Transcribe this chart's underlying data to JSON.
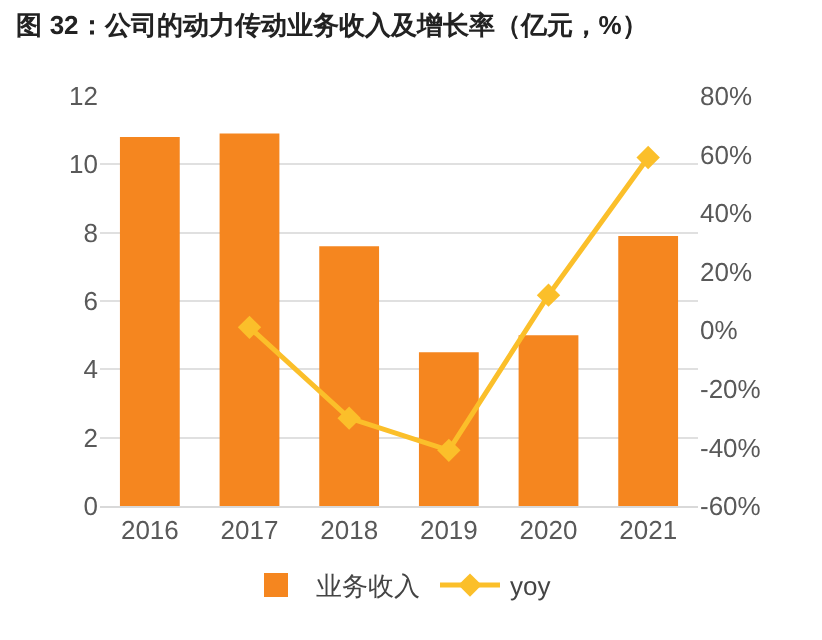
{
  "chart_data": {
    "type": "bar",
    "title": "图 32：公司的动力传动业务收入及增长率（亿元，%）",
    "categories": [
      "2016",
      "2017",
      "2018",
      "2019",
      "2020",
      "2021"
    ],
    "series": [
      {
        "name": "业务收入",
        "color": "#f5861f",
        "values": [
          10.8,
          10.9,
          7.6,
          4.5,
          5.0,
          7.9
        ]
      },
      {
        "name": "yoy",
        "type": "line",
        "axis": "y2",
        "color": "#fbbf2a",
        "marker": "diamond",
        "values": [
          null,
          1,
          -30,
          -41,
          12,
          59
        ]
      }
    ],
    "ylim": [
      0,
      12
    ],
    "yticks": [
      0,
      2,
      4,
      6,
      8,
      10,
      12
    ],
    "y2lim": [
      -60,
      80
    ],
    "y2ticks": [
      {
        "value": -60,
        "label": "-60%"
      },
      {
        "value": -40,
        "label": "-40%"
      },
      {
        "value": -20,
        "label": "-20%"
      },
      {
        "value": 0,
        "label": "0%"
      },
      {
        "value": 20,
        "label": "20%"
      },
      {
        "value": 40,
        "label": "40%"
      },
      {
        "value": 60,
        "label": "60%"
      },
      {
        "value": 80,
        "label": "80%"
      }
    ],
    "grid": "y",
    "legend": "bottom"
  }
}
